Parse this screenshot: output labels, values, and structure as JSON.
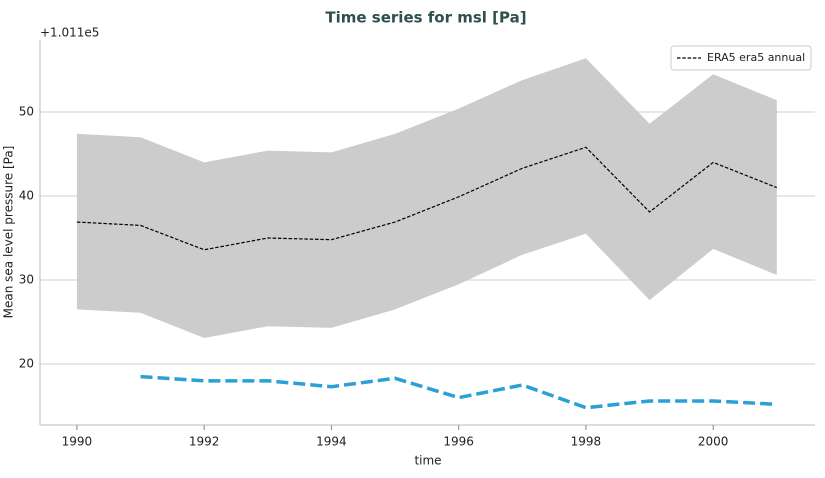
{
  "chart_data": {
    "type": "line",
    "title": "Time series for msl [Pa]",
    "xlabel": "time",
    "ylabel": "Mean sea level pressure [Pa]",
    "y_offset_label": "+1.011e5",
    "x": [
      1990,
      1991,
      1992,
      1993,
      1994,
      1995,
      1996,
      1997,
      1998,
      1999,
      2000,
      2001
    ],
    "xlim": [
      1989.42,
      2001.6
    ],
    "xticks": [
      1990,
      1992,
      1994,
      1996,
      1998,
      2000
    ],
    "ylim": [
      12.74,
      58.57
    ],
    "yticks": [
      20,
      30,
      40,
      50
    ],
    "grid": true,
    "legend": "upper right",
    "series": [
      {
        "name": "ERA5 era5 annual",
        "color": "#000000",
        "dash": "dashed",
        "values": [
          36.9,
          36.5,
          33.6,
          35.0,
          34.8,
          36.9,
          39.9,
          43.3,
          45.8,
          38.1,
          44.0,
          41.0
        ],
        "upper": [
          47.4,
          47.0,
          44.0,
          45.4,
          45.2,
          47.4,
          50.4,
          53.8,
          56.4,
          48.6,
          54.5,
          51.4
        ],
        "lower": [
          26.5,
          26.1,
          23.1,
          24.5,
          24.3,
          26.5,
          29.5,
          33.0,
          35.5,
          27.6,
          33.7,
          30.6
        ],
        "band_color": "#cccccc"
      },
      {
        "color": "#2a9fd8",
        "dash": "dashed",
        "values": [
          null,
          18.5,
          18.0,
          18.0,
          17.3,
          18.3,
          16.0,
          17.5,
          14.8,
          15.6,
          15.6,
          15.2
        ]
      }
    ]
  }
}
